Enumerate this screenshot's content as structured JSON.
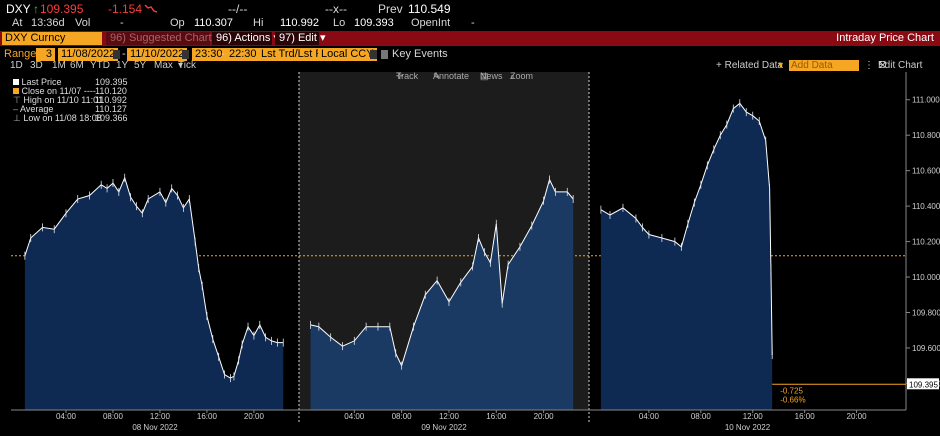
{
  "quote": {
    "ticker": "DXY",
    "last": "109.395",
    "change": "-1.154",
    "vol_blank": "--/--",
    "x_blank": "--x--",
    "prev_label": "Prev",
    "prev": "110.549",
    "at_label": "At",
    "time": "13:36d",
    "vol_label": "Vol",
    "vol_value": "-",
    "op_label": "Op",
    "op": "110.307",
    "hi_label": "Hi",
    "hi": "110.992",
    "lo_label": "Lo",
    "lo": "109.393",
    "openint_label": "OpenInt",
    "openint": "-"
  },
  "toolbar": {
    "security": "DXY Curncy",
    "suggested": "96) Suggested Charts",
    "actions": "96) Actions",
    "edit": "97) Edit",
    "title": "Intraday Price Chart"
  },
  "controls": {
    "range_label": "Range",
    "range_num": "3",
    "start_date": "11/08/2022",
    "end_date": "11/10/2022",
    "start_time": "23:30",
    "end_time": "22:30",
    "fields": "Lst Trd/Lst P",
    "currency": "Local CCY",
    "key_events": "Key Events"
  },
  "periods": [
    "1D",
    "3D",
    "1M",
    "6M",
    "YTD",
    "1Y",
    "5Y",
    "Max"
  ],
  "tick_label": "Tick",
  "right_tools": {
    "related": "+ Related Data",
    "add_data": "Add Data",
    "edit_chart": "Edit Chart"
  },
  "chart_tools": {
    "track": "Track",
    "annotate": "Annotate",
    "news": "News",
    "zoom": "Zoom"
  },
  "legend": [
    {
      "label": "Last Price",
      "value": "109.395"
    },
    {
      "label": "Close on 11/07 ----",
      "value": "110.120"
    },
    {
      "label": "High on 11/10 11:01",
      "value": "110.992"
    },
    {
      "label": "Average",
      "value": "110.127"
    },
    {
      "label": "Low on 11/08 18:08",
      "value": "109.366"
    }
  ],
  "annotations": {
    "change": "-0.725",
    "pct": "-0.66%"
  },
  "colors": {
    "fill": "#0f2a52",
    "fill_mid": "#1b3a63",
    "line": "#ffffff",
    "accent": "#f5a623",
    "title_bg": "#8a0a14"
  },
  "chart_data": {
    "type": "area",
    "y_axis": {
      "ticks": [
        109.4,
        109.6,
        109.8,
        110.0,
        110.2,
        110.4,
        110.6,
        110.8,
        111.0
      ],
      "ylim": [
        109.25,
        111.1
      ]
    },
    "reference_line": 110.12,
    "last_price": 109.395,
    "days": [
      {
        "label": "08 Nov 2022",
        "hours": [
          "04:00",
          "08:00",
          "12:00",
          "16:00",
          "20:00"
        ],
        "x": [
          0.5,
          1,
          2,
          3,
          4,
          5,
          6,
          7,
          7.5,
          8,
          8.5,
          9,
          9.5,
          10,
          10.5,
          11,
          12,
          12.5,
          13,
          13.5,
          14,
          14.5,
          15,
          15.3,
          15.6,
          16,
          16.5,
          17,
          17.5,
          18,
          18.3,
          18.7,
          19,
          19.5,
          20,
          20.5,
          21,
          21.5,
          22,
          22.5
        ],
        "values": [
          110.12,
          110.22,
          110.28,
          110.27,
          110.36,
          110.44,
          110.46,
          110.52,
          110.5,
          110.53,
          110.48,
          110.56,
          110.45,
          110.4,
          110.36,
          110.44,
          110.48,
          110.42,
          110.5,
          110.46,
          110.39,
          110.44,
          110.2,
          110.05,
          109.95,
          109.78,
          109.65,
          109.55,
          109.45,
          109.43,
          109.44,
          109.53,
          109.62,
          109.72,
          109.67,
          109.73,
          109.66,
          109.64,
          109.63,
          109.63
        ]
      },
      {
        "label": "09 Nov 2022",
        "hours": [
          "04:00",
          "08:00",
          "12:00",
          "16:00",
          "20:00"
        ],
        "x": [
          0.3,
          1,
          2,
          3,
          4,
          5,
          6,
          7,
          7.5,
          8,
          9,
          10,
          11,
          12,
          13,
          14,
          14.5,
          15,
          15.5,
          16,
          16.5,
          17,
          18,
          19,
          20,
          20.5,
          21,
          22,
          22.5
        ],
        "values": [
          109.73,
          109.72,
          109.66,
          109.61,
          109.64,
          109.72,
          109.72,
          109.72,
          109.57,
          109.5,
          109.72,
          109.9,
          109.98,
          109.86,
          109.97,
          110.06,
          110.22,
          110.14,
          110.08,
          110.3,
          109.85,
          110.07,
          110.17,
          110.29,
          110.43,
          110.55,
          110.48,
          110.48,
          110.44
        ]
      },
      {
        "label": "10 Nov 2022",
        "hours": [
          "04:00",
          "08:00",
          "12:00",
          "16:00",
          "20:00"
        ],
        "x": [
          0.3,
          1,
          2,
          3,
          3.5,
          4,
          5,
          6,
          6.5,
          7,
          7.5,
          8,
          8.5,
          9,
          9.5,
          10,
          10.5,
          11,
          11.5,
          12,
          12.5,
          13,
          13.3,
          13.4,
          13.5,
          14.5,
          15,
          16,
          18,
          20,
          22.5
        ],
        "values": [
          110.38,
          110.35,
          110.39,
          110.33,
          110.28,
          110.24,
          110.22,
          110.2,
          110.17,
          110.3,
          110.42,
          110.52,
          110.63,
          110.72,
          110.8,
          110.86,
          110.95,
          110.98,
          110.93,
          110.91,
          110.88,
          110.77,
          110.5,
          110.05,
          109.56,
          109.395,
          109.395,
          109.395,
          109.395,
          109.395,
          109.395
        ]
      }
    ]
  }
}
